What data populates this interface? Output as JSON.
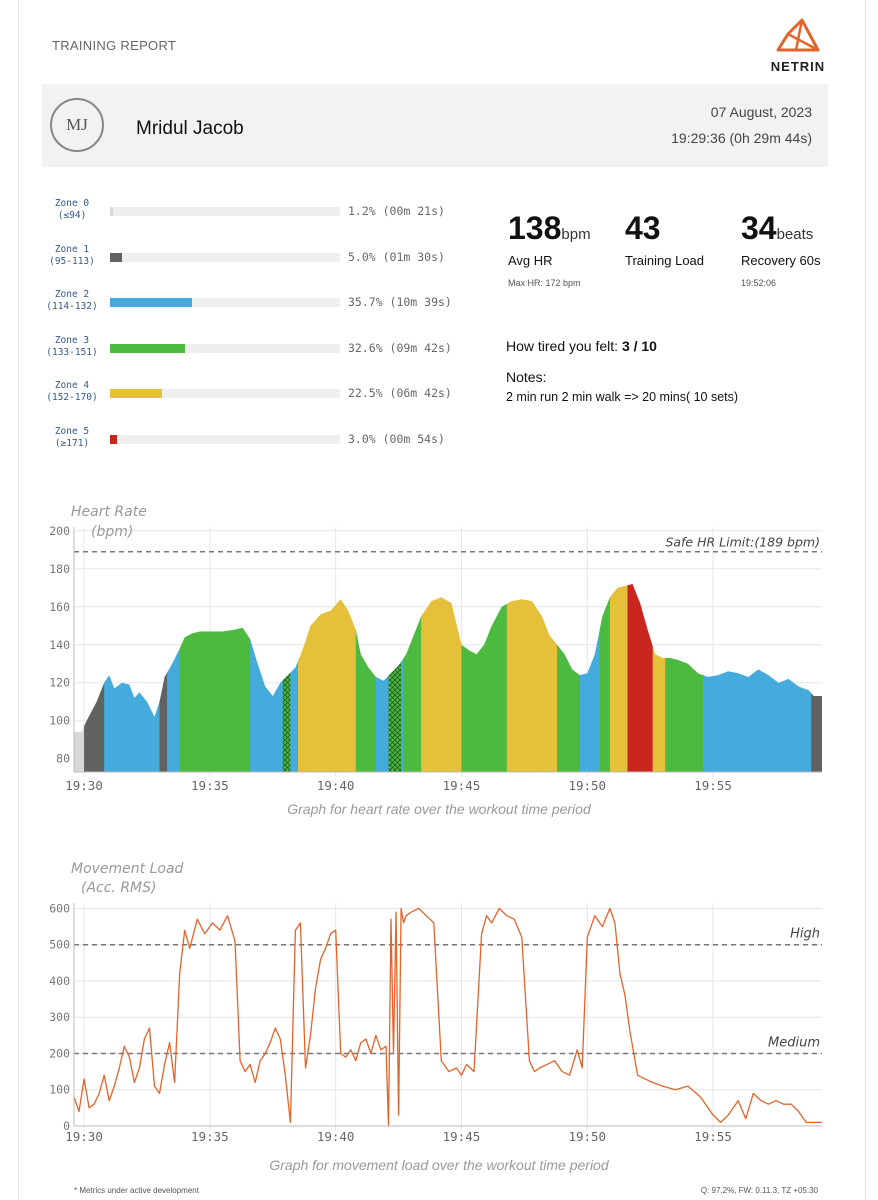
{
  "header": {
    "report_title": "TRAINING REPORT",
    "brand": "NETRIN",
    "avatar_initials": "MJ",
    "name": "Mridul Jacob",
    "date": "07 August, 2023",
    "time": "19:29:36 (0h 29m 44s)"
  },
  "zones": [
    {
      "name": "Zone 0",
      "range": "(≤94)",
      "pct": 1.2,
      "text": "1.2% (00m 21s)",
      "color": "#d8d8d8"
    },
    {
      "name": "Zone 1",
      "range": "(95-113)",
      "pct": 5.0,
      "text": "5.0% (01m 30s)",
      "color": "#616161"
    },
    {
      "name": "Zone 2",
      "range": "(114-132)",
      "pct": 35.7,
      "text": "35.7% (10m 39s)",
      "color": "#45aadc"
    },
    {
      "name": "Zone 3",
      "range": "(133-151)",
      "pct": 32.6,
      "text": "32.6% (09m 42s)",
      "color": "#4cb93f"
    },
    {
      "name": "Zone 4",
      "range": "(152-170)",
      "pct": 22.5,
      "text": "22.5% (06m 42s)",
      "color": "#e5c03b"
    },
    {
      "name": "Zone 5",
      "range": "(≥171)",
      "pct": 3.0,
      "text": "3.0% (00m 54s)",
      "color": "#c9261f"
    }
  ],
  "metrics": {
    "avg_hr": {
      "value": "138",
      "unit": "bpm",
      "label": "Avg HR",
      "sub": "Max HR: 172 bpm"
    },
    "training_load": {
      "value": "43",
      "label": "Training Load"
    },
    "recovery": {
      "value": "34",
      "unit": "beats",
      "label": "Recovery 60s",
      "sub": "19:52:06"
    }
  },
  "session": {
    "tired_label": "How tired you felt: ",
    "tired_value": "3 / 10",
    "notes_label": "Notes:",
    "notes_text": "2 min run 2 min walk => 20 mins( 10 sets)"
  },
  "chart_data": [
    {
      "type": "area",
      "title": "Heart Rate",
      "ylabel": "(bpm)",
      "x_ticks": [
        "19:30",
        "19:35",
        "19:40",
        "19:45",
        "19:50",
        "19:55"
      ],
      "x_tick_minutes": [
        30,
        35,
        40,
        45,
        50,
        55
      ],
      "xlim_minutes": [
        29.6,
        59.33
      ],
      "ylim": [
        73,
        202
      ],
      "y_ticks": [
        80,
        100,
        120,
        140,
        160,
        180,
        200
      ],
      "grid": true,
      "annotation": {
        "label": "Safe HR Limit:(189 bpm)",
        "value": 189
      },
      "zone_colors": [
        "#d8d8d8",
        "#616161",
        "#45aadc",
        "#4cb93f",
        "#e5c03b",
        "#c9261f"
      ],
      "x_minutes": [
        29.6,
        29.9,
        30.1,
        30.3,
        30.5,
        30.8,
        31.0,
        31.2,
        31.5,
        31.8,
        32.0,
        32.2,
        32.5,
        32.8,
        33.0,
        33.2,
        33.5,
        33.8,
        34.0,
        34.3,
        34.6,
        35.0,
        35.5,
        36.0,
        36.3,
        36.6,
        36.9,
        37.2,
        37.5,
        37.8,
        38.1,
        38.4,
        38.7,
        39.0,
        39.4,
        39.8,
        40.2,
        40.5,
        40.8,
        41.0,
        41.3,
        41.6,
        41.9,
        42.2,
        42.5,
        42.8,
        43.1,
        43.4,
        43.8,
        44.2,
        44.6,
        45.0,
        45.3,
        45.6,
        45.9,
        46.2,
        46.6,
        47.0,
        47.4,
        47.8,
        48.2,
        48.5,
        48.8,
        49.1,
        49.4,
        49.7,
        50.0,
        50.3,
        50.6,
        50.9,
        51.2,
        51.5,
        51.8,
        52.1,
        52.4,
        52.7,
        53.0,
        53.3,
        53.6,
        54.0,
        54.4,
        54.8,
        55.2,
        55.6,
        56.0,
        56.4,
        56.8,
        57.2,
        57.6,
        58.0,
        58.4,
        58.8,
        59.0,
        59.33
      ],
      "hr": [
        94,
        94,
        100,
        105,
        110,
        120,
        124,
        117,
        120,
        119,
        112,
        115,
        110,
        102,
        110,
        123,
        130,
        138,
        144,
        146,
        147,
        147,
        147,
        148,
        149,
        143,
        130,
        118,
        113,
        120,
        124,
        128,
        138,
        150,
        156,
        158,
        164,
        158,
        148,
        135,
        128,
        123,
        121,
        125,
        129,
        135,
        145,
        155,
        163,
        165,
        162,
        140,
        137,
        135,
        140,
        150,
        160,
        163,
        164,
        163,
        155,
        145,
        140,
        135,
        127,
        124,
        125,
        135,
        155,
        165,
        170,
        171,
        172,
        162,
        148,
        135,
        133,
        133,
        132,
        130,
        125,
        123,
        124,
        126,
        125,
        123,
        127,
        124,
        120,
        122,
        118,
        116,
        113,
        113
      ],
      "zone_segments": [
        {
          "start": 29.6,
          "end": 30.0,
          "zone": 0
        },
        {
          "start": 30.0,
          "end": 30.8,
          "zone": 1
        },
        {
          "start": 30.8,
          "end": 33.0,
          "zone": 2
        },
        {
          "start": 33.0,
          "end": 33.3,
          "zone": 1
        },
        {
          "start": 33.3,
          "end": 33.8,
          "zone": 2
        },
        {
          "start": 33.8,
          "end": 36.6,
          "zone": 3
        },
        {
          "start": 36.6,
          "end": 38.5,
          "zone": 2
        },
        {
          "start": 38.5,
          "end": 40.8,
          "zone": 4
        },
        {
          "start": 40.8,
          "end": 41.6,
          "zone": 3
        },
        {
          "start": 41.6,
          "end": 42.7,
          "zone": 2
        },
        {
          "start": 42.7,
          "end": 43.4,
          "zone": 3
        },
        {
          "start": 43.4,
          "end": 45.0,
          "zone": 4
        },
        {
          "start": 45.0,
          "end": 46.8,
          "zone": 3
        },
        {
          "start": 46.8,
          "end": 48.8,
          "zone": 4
        },
        {
          "start": 48.8,
          "end": 49.7,
          "zone": 3
        },
        {
          "start": 49.7,
          "end": 50.5,
          "zone": 2
        },
        {
          "start": 50.5,
          "end": 50.9,
          "zone": 3
        },
        {
          "start": 50.9,
          "end": 51.6,
          "zone": 4
        },
        {
          "start": 51.6,
          "end": 52.6,
          "zone": 5
        },
        {
          "start": 52.6,
          "end": 53.1,
          "zone": 4
        },
        {
          "start": 53.1,
          "end": 54.6,
          "zone": 3
        },
        {
          "start": 54.6,
          "end": 58.9,
          "zone": 2
        },
        {
          "start": 58.9,
          "end": 59.33,
          "zone": 1
        }
      ],
      "hatched_segments": [
        {
          "start": 37.9,
          "end": 38.2
        },
        {
          "start": 42.1,
          "end": 42.6
        }
      ]
    },
    {
      "type": "line",
      "title": "Movement Load",
      "ylabel": "(Acc. RMS)",
      "color": "#e2642a",
      "x_ticks": [
        "19:30",
        "19:35",
        "19:40",
        "19:45",
        "19:50",
        "19:55"
      ],
      "x_tick_minutes": [
        30,
        35,
        40,
        45,
        50,
        55
      ],
      "xlim_minutes": [
        29.6,
        59.33
      ],
      "ylim": [
        0,
        615
      ],
      "y_ticks": [
        0,
        100,
        200,
        300,
        400,
        500,
        600
      ],
      "grid": true,
      "thresholds": [
        {
          "label": "High",
          "value": 500
        },
        {
          "label": "Medium",
          "value": 200
        }
      ],
      "x_minutes": [
        29.6,
        29.8,
        30.0,
        30.2,
        30.4,
        30.6,
        30.8,
        31.0,
        31.2,
        31.4,
        31.6,
        31.8,
        32.0,
        32.2,
        32.4,
        32.6,
        32.8,
        33.0,
        33.2,
        33.4,
        33.6,
        33.8,
        34.0,
        34.2,
        34.5,
        34.8,
        35.1,
        35.4,
        35.7,
        36.0,
        36.2,
        36.4,
        36.6,
        36.8,
        37.0,
        37.2,
        37.4,
        37.6,
        37.8,
        38.0,
        38.2,
        38.4,
        38.6,
        38.8,
        39.0,
        39.2,
        39.4,
        39.6,
        39.8,
        40.0,
        40.2,
        40.4,
        40.6,
        40.8,
        41.0,
        41.2,
        41.4,
        41.6,
        41.8,
        42.0,
        42.1,
        42.2,
        42.3,
        42.4,
        42.5,
        42.6,
        42.7,
        42.8,
        43.0,
        43.3,
        43.6,
        43.9,
        44.2,
        44.5,
        44.8,
        45.0,
        45.2,
        45.5,
        45.8,
        46.0,
        46.2,
        46.5,
        46.8,
        47.1,
        47.4,
        47.7,
        47.9,
        48.1,
        48.4,
        48.7,
        49.0,
        49.3,
        49.6,
        49.8,
        50.0,
        50.3,
        50.6,
        50.9,
        51.1,
        51.3,
        51.5,
        51.7,
        52.0,
        52.3,
        52.6,
        53.0,
        53.5,
        54.0,
        54.5,
        55.0,
        55.3,
        55.6,
        56.0,
        56.3,
        56.6,
        56.9,
        57.2,
        57.5,
        57.8,
        58.1,
        58.4,
        58.7,
        59.0,
        59.33
      ],
      "values": [
        80,
        40,
        130,
        50,
        60,
        90,
        140,
        70,
        110,
        160,
        220,
        190,
        120,
        160,
        240,
        270,
        110,
        90,
        170,
        230,
        120,
        420,
        540,
        490,
        570,
        530,
        560,
        540,
        580,
        510,
        180,
        150,
        170,
        120,
        180,
        200,
        230,
        270,
        240,
        140,
        10,
        540,
        560,
        160,
        250,
        380,
        460,
        490,
        530,
        540,
        200,
        190,
        210,
        180,
        230,
        240,
        200,
        250,
        210,
        220,
        0,
        570,
        200,
        590,
        30,
        600,
        560,
        580,
        590,
        600,
        580,
        560,
        180,
        150,
        160,
        140,
        170,
        150,
        530,
        580,
        560,
        600,
        580,
        570,
        520,
        180,
        150,
        160,
        170,
        180,
        150,
        140,
        210,
        160,
        520,
        580,
        550,
        600,
        560,
        420,
        360,
        260,
        140,
        130,
        120,
        110,
        100,
        110,
        80,
        30,
        10,
        30,
        70,
        20,
        90,
        70,
        60,
        70,
        60,
        60,
        40,
        10,
        10,
        10
      ]
    }
  ],
  "captions": {
    "hr": "Graph for heart rate over the workout time period",
    "movement": "Graph for movement load over the workout time period"
  },
  "footer": {
    "left": "* Metrics under active development",
    "right": "Q: 97.2%, FW: 0.11.3, TZ +05:30"
  }
}
